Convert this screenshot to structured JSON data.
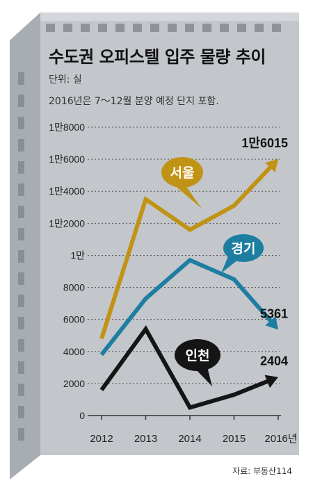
{
  "title": "수도권 오피스텔 입주 물량 추이",
  "unit": "단위: 실",
  "note": "2016년은 7～12월 분양 예정 단지 포함.",
  "source": "자료: 부동산114",
  "colors": {
    "seoul": "#c19315",
    "gyeonggi": "#1e7ea1",
    "incheon": "#151515",
    "building": "#c3c6cb",
    "building_shade": "#a7abb2"
  },
  "chart_data": {
    "type": "line",
    "title": "수도권 오피스텔 입주 물량 추이",
    "xlabel": "",
    "ylabel": "",
    "x": [
      "2012",
      "2013",
      "2014",
      "2015",
      "2016년"
    ],
    "ylim": [
      0,
      18000
    ],
    "grid": true,
    "yticks": [
      {
        "value": 0,
        "label": "0"
      },
      {
        "value": 2000,
        "label": "2000"
      },
      {
        "value": 4000,
        "label": "4000"
      },
      {
        "value": 6000,
        "label": "6000"
      },
      {
        "value": 8000,
        "label": "8000"
      },
      {
        "value": 10000,
        "label": "1만"
      },
      {
        "value": 12000,
        "label": "1만2000"
      },
      {
        "value": 14000,
        "label": "1만4000"
      },
      {
        "value": 16000,
        "label": "1만6000"
      },
      {
        "value": 18000,
        "label": "1만8000"
      }
    ],
    "series": [
      {
        "name": "서울",
        "color": "#c19315",
        "values": [
          4800,
          13500,
          11600,
          13100,
          16015
        ],
        "end_label": "1만6015"
      },
      {
        "name": "경기",
        "color": "#1e7ea1",
        "values": [
          3800,
          7300,
          9700,
          8500,
          5361
        ],
        "end_label": "5361"
      },
      {
        "name": "인천",
        "color": "#151515",
        "values": [
          1600,
          5400,
          500,
          1300,
          2404
        ],
        "end_label": "2404"
      }
    ]
  }
}
